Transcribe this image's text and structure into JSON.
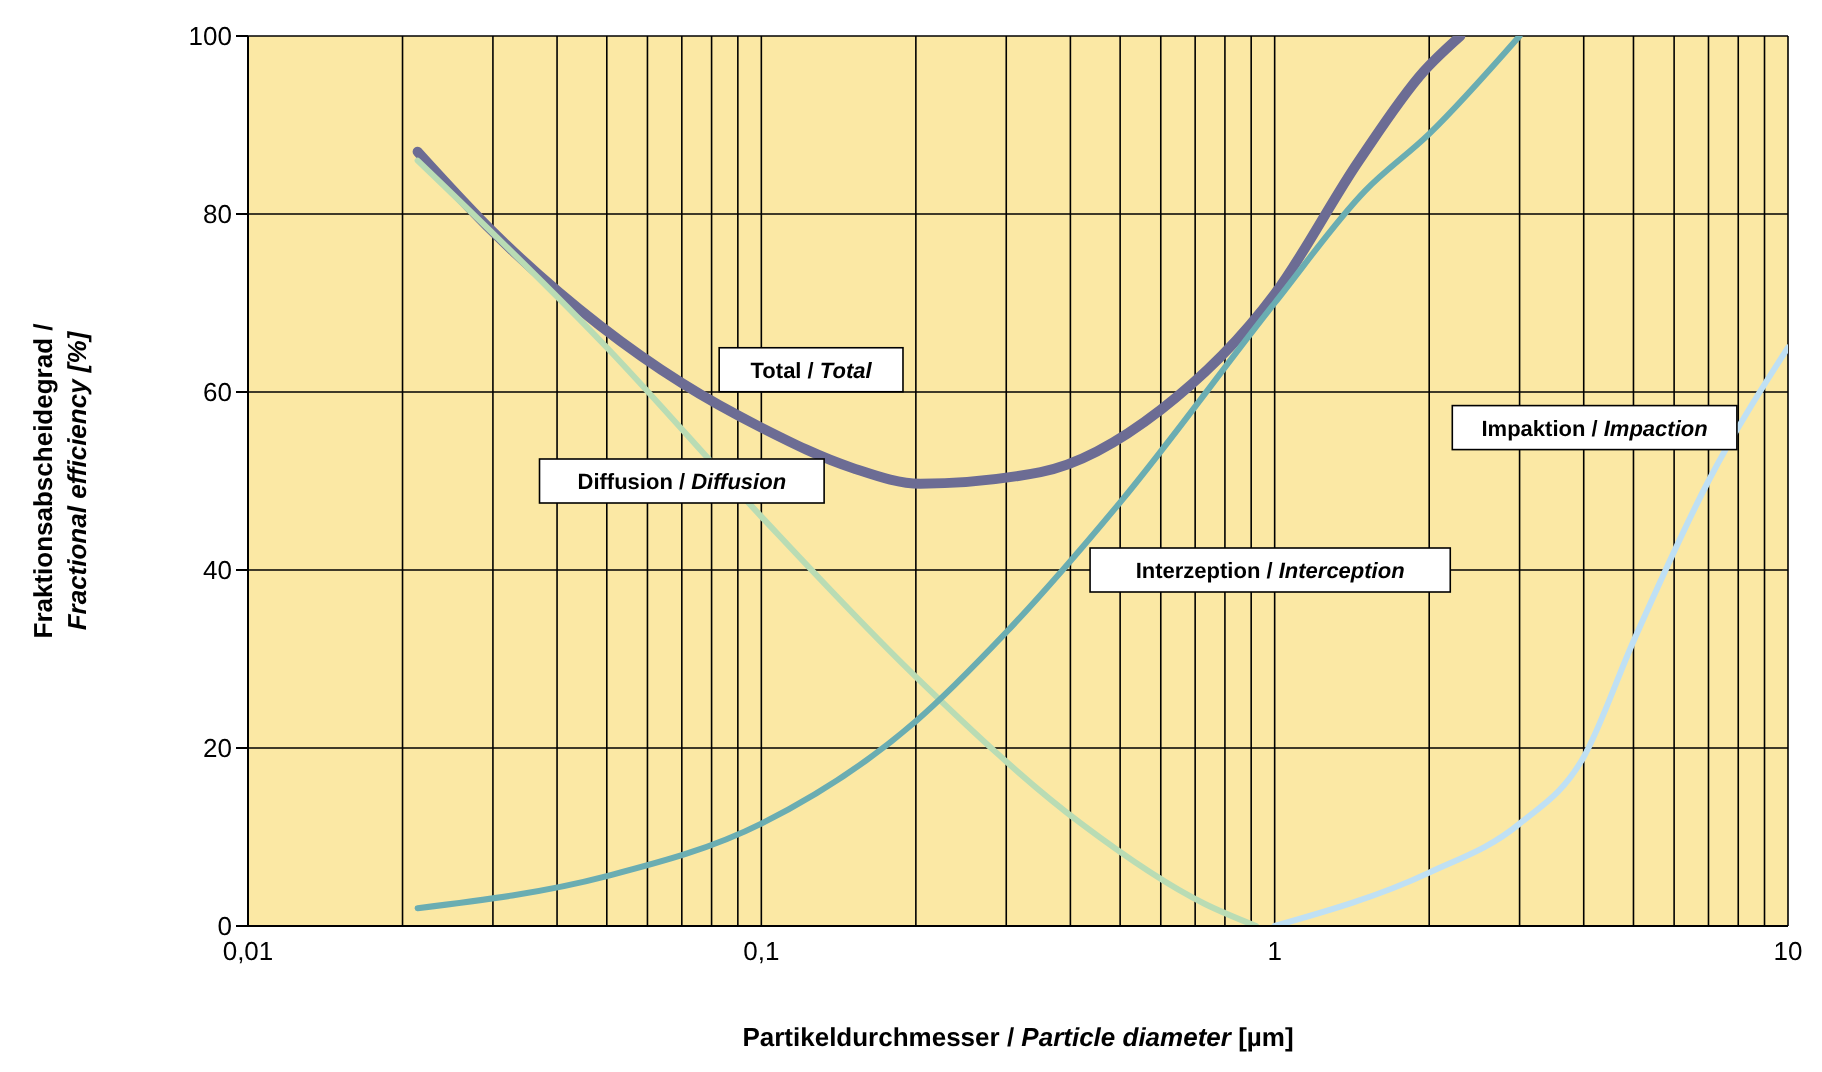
{
  "chart_data": {
    "type": "line",
    "xlabel": "Partikeldurchmesser / Particle diameter [µm]",
    "ylabel": "Fraktionsabscheidegrad / Fractional efficiency [%]",
    "log": "x",
    "grid": true,
    "marker": "none",
    "line_style": "solid",
    "xlim": [
      0.01,
      10
    ],
    "ylim": [
      0,
      100
    ],
    "yticks": [
      0,
      20,
      40,
      60,
      80,
      100
    ],
    "xticks": [
      {
        "value": 0.01,
        "label": "0,01"
      },
      {
        "value": 0.02,
        "label": null
      },
      {
        "value": 0.03,
        "label": null
      },
      {
        "value": 0.04,
        "label": null
      },
      {
        "value": 0.05,
        "label": null
      },
      {
        "value": 0.06,
        "label": null
      },
      {
        "value": 0.07,
        "label": null
      },
      {
        "value": 0.08,
        "label": null
      },
      {
        "value": 0.09,
        "label": null
      },
      {
        "value": 0.1,
        "label": "0,1"
      },
      {
        "value": 0.2,
        "label": null
      },
      {
        "value": 0.3,
        "label": null
      },
      {
        "value": 0.4,
        "label": null
      },
      {
        "value": 0.5,
        "label": null
      },
      {
        "value": 0.6,
        "label": null
      },
      {
        "value": 0.7,
        "label": null
      },
      {
        "value": 0.8,
        "label": null
      },
      {
        "value": 0.9,
        "label": null
      },
      {
        "value": 1,
        "label": "1"
      },
      {
        "value": 2,
        "label": null
      },
      {
        "value": 3,
        "label": null
      },
      {
        "value": 4,
        "label": null
      },
      {
        "value": 5,
        "label": null
      },
      {
        "value": 6,
        "label": null
      },
      {
        "value": 7,
        "label": null
      },
      {
        "value": 8,
        "label": null
      },
      {
        "value": 9,
        "label": null
      },
      {
        "value": 10,
        "label": "10"
      }
    ],
    "series": [
      {
        "name": "Total / Total",
        "color": "#6c6c94",
        "x": [
          0.0214,
          0.03,
          0.0484,
          0.07,
          0.1,
          0.15,
          0.204,
          0.35,
          0.6,
          1,
          1.46,
          1.95,
          2.3
        ],
        "values": [
          87,
          78,
          67.5,
          61,
          56,
          51.5,
          49.7,
          51,
          58,
          71,
          86,
          96,
          100
        ]
      },
      {
        "name": "Diffusion / Diffusion",
        "color": "#b9dcb4",
        "x": [
          0.0214,
          0.05,
          0.1,
          0.2,
          0.42,
          0.73,
          0.92
        ],
        "values": [
          86,
          65,
          46,
          28,
          11.5,
          2.5,
          0
        ]
      },
      {
        "name": "Interzeption / Interception",
        "color": "#6aadb2",
        "x": [
          0.0214,
          0.05,
          0.1,
          0.2,
          0.3,
          0.5,
          1,
          1.5,
          2,
          3
        ],
        "values": [
          2,
          5.6,
          11.5,
          23,
          33,
          47.6,
          70,
          82.6,
          89,
          100
        ]
      },
      {
        "name": "Impaktion / Impaction",
        "color": "#bfe0f4",
        "x": [
          1,
          2,
          3,
          4,
          5,
          7,
          10
        ],
        "values": [
          0,
          6,
          11.5,
          19,
          32,
          50,
          65
        ]
      }
    ]
  }
}
